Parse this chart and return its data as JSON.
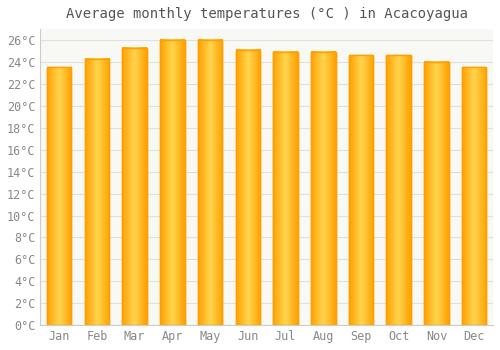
{
  "title": "Average monthly temperatures (°C ) in Acacoyagua",
  "months": [
    "Jan",
    "Feb",
    "Mar",
    "Apr",
    "May",
    "Jun",
    "Jul",
    "Aug",
    "Sep",
    "Oct",
    "Nov",
    "Dec"
  ],
  "values": [
    23.5,
    24.3,
    25.3,
    26.0,
    26.0,
    25.1,
    24.9,
    24.9,
    24.6,
    24.6,
    24.0,
    23.5
  ],
  "bar_color_center": "#FFD54F",
  "bar_color_edge": "#FFA000",
  "background_color": "#ffffff",
  "plot_bg_color": "#f8f8f5",
  "grid_color": "#e0e0e0",
  "ylim": [
    0,
    27
  ],
  "ytick_step": 2,
  "title_fontsize": 10,
  "tick_fontsize": 8.5,
  "bar_width": 0.65
}
